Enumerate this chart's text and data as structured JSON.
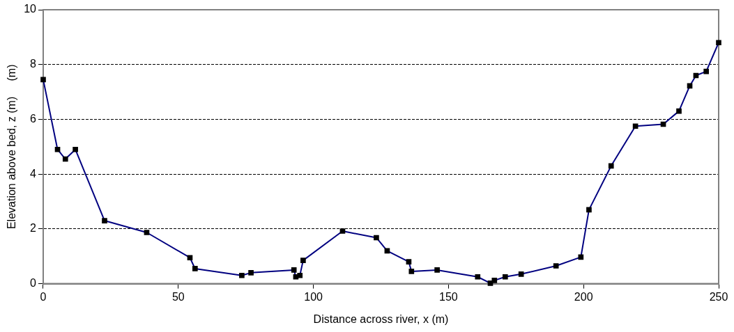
{
  "chart_data": {
    "type": "line",
    "xlabel": "Distance across river, x (m)",
    "ylabel": "Elevation above bed, z (m)     (m)",
    "x": [
      0,
      5.3,
      8.2,
      11.9,
      22.7,
      38.3,
      54.3,
      56.2,
      73.5,
      76.9,
      92.8,
      93.5,
      95,
      96.2,
      110.8,
      123.3,
      127.3,
      135.3,
      136.3,
      145.8,
      160.8,
      165.5,
      167,
      171,
      176.9,
      189.8,
      199,
      202,
      210.2,
      219.2,
      229.5,
      235.3,
      239.3,
      241.6,
      245.4,
      250
    ],
    "series": [
      {
        "color": "#000080",
        "values": [
          7.45,
          4.9,
          4.55,
          4.9,
          2.3,
          1.87,
          0.95,
          0.55,
          0.3,
          0.4,
          0.5,
          0.25,
          0.3,
          0.85,
          1.92,
          1.68,
          1.2,
          0.8,
          0.45,
          0.5,
          0.25,
          0.02,
          0.12,
          0.25,
          0.35,
          0.65,
          0.97,
          2.7,
          4.3,
          5.75,
          5.82,
          6.3,
          7.22,
          7.6,
          7.75,
          8.8
        ]
      }
    ],
    "xlim": [
      0,
      250
    ],
    "xticks": [
      0,
      50,
      100,
      150,
      200,
      250
    ],
    "ylim": [
      0,
      10
    ],
    "yticks": [
      0,
      2,
      4,
      6,
      8,
      10
    ],
    "grid": "y",
    "marker": "square",
    "line_style": "solid",
    "legend": false
  }
}
